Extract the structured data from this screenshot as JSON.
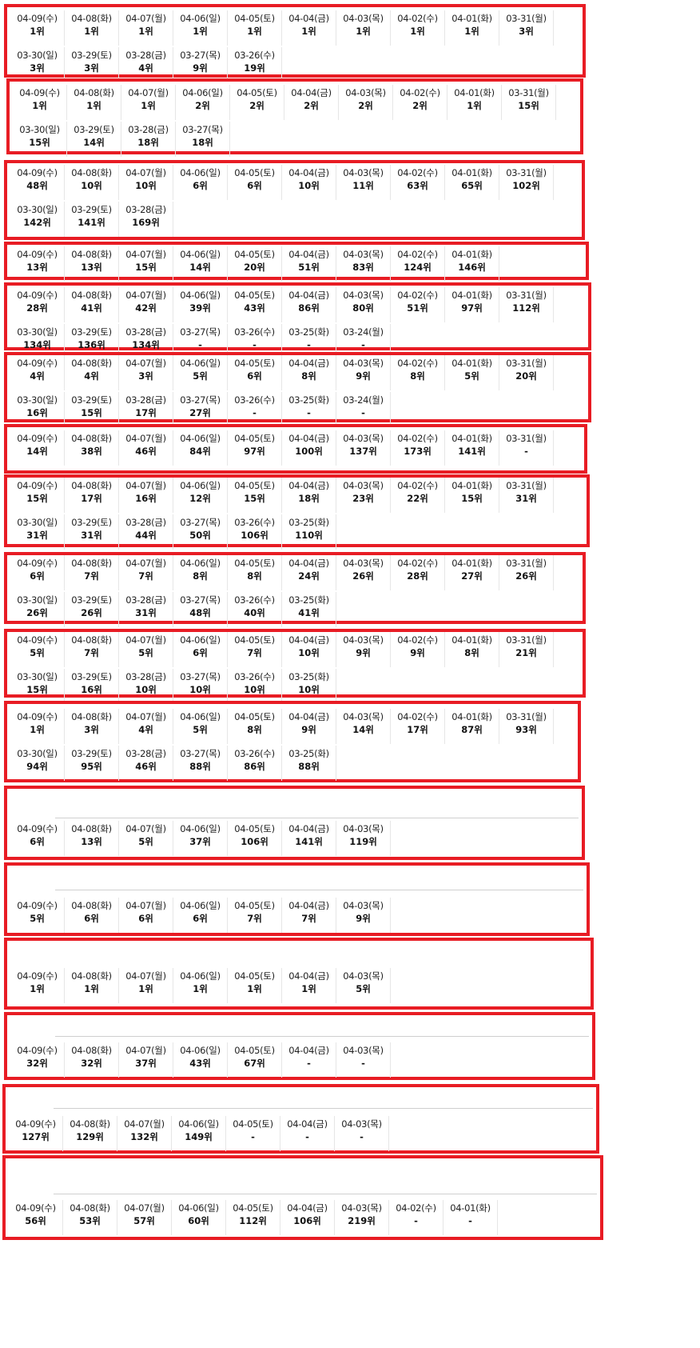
{
  "border_color": "#e81c24",
  "panels": [
    {
      "cells": [
        [
          "04-09(수)",
          "1위"
        ],
        [
          "04-08(화)",
          "1위"
        ],
        [
          "04-07(월)",
          "1위"
        ],
        [
          "04-06(일)",
          "1위"
        ],
        [
          "04-05(토)",
          "1위"
        ],
        [
          "04-04(금)",
          "1위"
        ],
        [
          "04-03(목)",
          "1위"
        ],
        [
          "04-02(수)",
          "1위"
        ],
        [
          "04-01(화)",
          "1위"
        ],
        [
          "03-31(월)",
          "3위"
        ],
        [
          "03-30(일)",
          "3위"
        ],
        [
          "03-29(토)",
          "3위"
        ],
        [
          "03-28(금)",
          "4위"
        ],
        [
          "03-27(목)",
          "9위"
        ],
        [
          "03-26(수)",
          "19위"
        ]
      ]
    },
    {
      "cells": [
        [
          "04-09(수)",
          "1위"
        ],
        [
          "04-08(화)",
          "1위"
        ],
        [
          "04-07(월)",
          "1위"
        ],
        [
          "04-06(일)",
          "2위"
        ],
        [
          "04-05(토)",
          "2위"
        ],
        [
          "04-04(금)",
          "2위"
        ],
        [
          "04-03(목)",
          "2위"
        ],
        [
          "04-02(수)",
          "2위"
        ],
        [
          "04-01(화)",
          "1위"
        ],
        [
          "03-31(월)",
          "15위"
        ],
        [
          "03-30(일)",
          "15위"
        ],
        [
          "03-29(토)",
          "14위"
        ],
        [
          "03-28(금)",
          "18위"
        ],
        [
          "03-27(목)",
          "18위"
        ]
      ]
    },
    {
      "cells": [
        [
          "04-09(수)",
          "48위"
        ],
        [
          "04-08(화)",
          "10위"
        ],
        [
          "04-07(월)",
          "10위"
        ],
        [
          "04-06(일)",
          "6위"
        ],
        [
          "04-05(토)",
          "6위"
        ],
        [
          "04-04(금)",
          "10위"
        ],
        [
          "04-03(목)",
          "11위"
        ],
        [
          "04-02(수)",
          "63위"
        ],
        [
          "04-01(화)",
          "65위"
        ],
        [
          "03-31(월)",
          "102위"
        ],
        [
          "03-30(일)",
          "142위"
        ],
        [
          "03-29(토)",
          "141위"
        ],
        [
          "03-28(금)",
          "169위"
        ]
      ]
    },
    {
      "cells": [
        [
          "04-09(수)",
          "13위"
        ],
        [
          "04-08(화)",
          "13위"
        ],
        [
          "04-07(월)",
          "15위"
        ],
        [
          "04-06(일)",
          "14위"
        ],
        [
          "04-05(토)",
          "20위"
        ],
        [
          "04-04(금)",
          "51위"
        ],
        [
          "04-03(목)",
          "83위"
        ],
        [
          "04-02(수)",
          "124위"
        ],
        [
          "04-01(화)",
          "146위"
        ]
      ]
    },
    {
      "cells": [
        [
          "04-09(수)",
          "28위"
        ],
        [
          "04-08(화)",
          "41위"
        ],
        [
          "04-07(월)",
          "42위"
        ],
        [
          "04-06(일)",
          "39위"
        ],
        [
          "04-05(토)",
          "43위"
        ],
        [
          "04-04(금)",
          "86위"
        ],
        [
          "04-03(목)",
          "80위"
        ],
        [
          "04-02(수)",
          "51위"
        ],
        [
          "04-01(화)",
          "97위"
        ],
        [
          "03-31(월)",
          "112위"
        ],
        [
          "03-30(일)",
          "134위"
        ],
        [
          "03-29(토)",
          "136위"
        ],
        [
          "03-28(금)",
          "134위"
        ],
        [
          "03-27(목)",
          "-"
        ],
        [
          "03-26(수)",
          "-"
        ],
        [
          "03-25(화)",
          "-"
        ],
        [
          "03-24(월)",
          "-"
        ]
      ]
    },
    {
      "cells": [
        [
          "04-09(수)",
          "4위"
        ],
        [
          "04-08(화)",
          "4위"
        ],
        [
          "04-07(월)",
          "3위"
        ],
        [
          "04-06(일)",
          "5위"
        ],
        [
          "04-05(토)",
          "6위"
        ],
        [
          "04-04(금)",
          "8위"
        ],
        [
          "04-03(목)",
          "9위"
        ],
        [
          "04-02(수)",
          "8위"
        ],
        [
          "04-01(화)",
          "5위"
        ],
        [
          "03-31(월)",
          "20위"
        ],
        [
          "03-30(일)",
          "16위"
        ],
        [
          "03-29(토)",
          "15위"
        ],
        [
          "03-28(금)",
          "17위"
        ],
        [
          "03-27(목)",
          "27위"
        ],
        [
          "03-26(수)",
          "-"
        ],
        [
          "03-25(화)",
          "-"
        ],
        [
          "03-24(월)",
          "-"
        ]
      ]
    },
    {
      "cells": [
        [
          "04-09(수)",
          "14위"
        ],
        [
          "04-08(화)",
          "38위"
        ],
        [
          "04-07(월)",
          "46위"
        ],
        [
          "04-06(일)",
          "84위"
        ],
        [
          "04-05(토)",
          "97위"
        ],
        [
          "04-04(금)",
          "100위"
        ],
        [
          "04-03(목)",
          "137위"
        ],
        [
          "04-02(수)",
          "173위"
        ],
        [
          "04-01(화)",
          "141위"
        ],
        [
          "03-31(월)",
          "-"
        ]
      ]
    },
    {
      "cells": [
        [
          "04-09(수)",
          "15위"
        ],
        [
          "04-08(화)",
          "17위"
        ],
        [
          "04-07(월)",
          "16위"
        ],
        [
          "04-06(일)",
          "12위"
        ],
        [
          "04-05(토)",
          "15위"
        ],
        [
          "04-04(금)",
          "18위"
        ],
        [
          "04-03(목)",
          "23위"
        ],
        [
          "04-02(수)",
          "22위"
        ],
        [
          "04-01(화)",
          "15위"
        ],
        [
          "03-31(월)",
          "31위"
        ],
        [
          "03-30(일)",
          "31위"
        ],
        [
          "03-29(토)",
          "31위"
        ],
        [
          "03-28(금)",
          "44위"
        ],
        [
          "03-27(목)",
          "50위"
        ],
        [
          "03-26(수)",
          "106위"
        ],
        [
          "03-25(화)",
          "110위"
        ]
      ]
    },
    {
      "cells": [
        [
          "04-09(수)",
          "6위"
        ],
        [
          "04-08(화)",
          "7위"
        ],
        [
          "04-07(월)",
          "7위"
        ],
        [
          "04-06(일)",
          "8위"
        ],
        [
          "04-05(토)",
          "8위"
        ],
        [
          "04-04(금)",
          "24위"
        ],
        [
          "04-03(목)",
          "26위"
        ],
        [
          "04-02(수)",
          "28위"
        ],
        [
          "04-01(화)",
          "27위"
        ],
        [
          "03-31(월)",
          "26위"
        ],
        [
          "03-30(일)",
          "26위"
        ],
        [
          "03-29(토)",
          "26위"
        ],
        [
          "03-28(금)",
          "31위"
        ],
        [
          "03-27(목)",
          "48위"
        ],
        [
          "03-26(수)",
          "40위"
        ],
        [
          "03-25(화)",
          "41위"
        ]
      ]
    },
    {
      "cells": [
        [
          "04-09(수)",
          "5위"
        ],
        [
          "04-08(화)",
          "7위"
        ],
        [
          "04-07(월)",
          "5위"
        ],
        [
          "04-06(일)",
          "6위"
        ],
        [
          "04-05(토)",
          "7위"
        ],
        [
          "04-04(금)",
          "10위"
        ],
        [
          "04-03(목)",
          "9위"
        ],
        [
          "04-02(수)",
          "9위"
        ],
        [
          "04-01(화)",
          "8위"
        ],
        [
          "03-31(월)",
          "21위"
        ],
        [
          "03-30(일)",
          "15위"
        ],
        [
          "03-29(토)",
          "16위"
        ],
        [
          "03-28(금)",
          "10위"
        ],
        [
          "03-27(목)",
          "10위"
        ],
        [
          "03-26(수)",
          "10위"
        ],
        [
          "03-25(화)",
          "10위"
        ]
      ]
    },
    {
      "cells": [
        [
          "04-09(수)",
          "1위"
        ],
        [
          "04-08(화)",
          "3위"
        ],
        [
          "04-07(월)",
          "4위"
        ],
        [
          "04-06(일)",
          "5위"
        ],
        [
          "04-05(토)",
          "8위"
        ],
        [
          "04-04(금)",
          "9위"
        ],
        [
          "04-03(목)",
          "14위"
        ],
        [
          "04-02(수)",
          "17위"
        ],
        [
          "04-01(화)",
          "87위"
        ],
        [
          "03-31(월)",
          "93위"
        ],
        [
          "03-30(일)",
          "94위"
        ],
        [
          "03-29(토)",
          "95위"
        ],
        [
          "03-28(금)",
          "46위"
        ],
        [
          "03-27(목)",
          "88위"
        ],
        [
          "03-26(수)",
          "86위"
        ],
        [
          "03-25(화)",
          "88위"
        ]
      ]
    },
    {
      "cells": [
        [
          "04-09(수)",
          "6위"
        ],
        [
          "04-08(화)",
          "13위"
        ],
        [
          "04-07(월)",
          "5위"
        ],
        [
          "04-06(일)",
          "37위"
        ],
        [
          "04-05(토)",
          "106위"
        ],
        [
          "04-04(금)",
          "141위"
        ],
        [
          "04-03(목)",
          "119위"
        ]
      ]
    },
    {
      "cells": [
        [
          "04-09(수)",
          "5위"
        ],
        [
          "04-08(화)",
          "6위"
        ],
        [
          "04-07(월)",
          "6위"
        ],
        [
          "04-06(일)",
          "6위"
        ],
        [
          "04-05(토)",
          "7위"
        ],
        [
          "04-04(금)",
          "7위"
        ],
        [
          "04-03(목)",
          "9위"
        ]
      ]
    },
    {
      "cells": [
        [
          "04-09(수)",
          "1위"
        ],
        [
          "04-08(화)",
          "1위"
        ],
        [
          "04-07(월)",
          "1위"
        ],
        [
          "04-06(일)",
          "1위"
        ],
        [
          "04-05(토)",
          "1위"
        ],
        [
          "04-04(금)",
          "1위"
        ],
        [
          "04-03(목)",
          "5위"
        ]
      ]
    },
    {
      "cells": [
        [
          "04-09(수)",
          "32위"
        ],
        [
          "04-08(화)",
          "32위"
        ],
        [
          "04-07(월)",
          "37위"
        ],
        [
          "04-06(일)",
          "43위"
        ],
        [
          "04-05(토)",
          "67위"
        ],
        [
          "04-04(금)",
          "-"
        ],
        [
          "04-03(목)",
          "-"
        ]
      ]
    },
    {
      "cells": [
        [
          "04-09(수)",
          "127위"
        ],
        [
          "04-08(화)",
          "129위"
        ],
        [
          "04-07(월)",
          "132위"
        ],
        [
          "04-06(일)",
          "149위"
        ],
        [
          "04-05(토)",
          "-"
        ],
        [
          "04-04(금)",
          "-"
        ],
        [
          "04-03(목)",
          "-"
        ]
      ]
    },
    {
      "cells": [
        [
          "04-09(수)",
          "56위"
        ],
        [
          "04-08(화)",
          "53위"
        ],
        [
          "04-07(월)",
          "57위"
        ],
        [
          "04-06(일)",
          "60위"
        ],
        [
          "04-05(토)",
          "112위"
        ],
        [
          "04-04(금)",
          "106위"
        ],
        [
          "04-03(목)",
          "219위"
        ],
        [
          "04-02(수)",
          "-"
        ],
        [
          "04-01(화)",
          "-"
        ]
      ]
    }
  ]
}
